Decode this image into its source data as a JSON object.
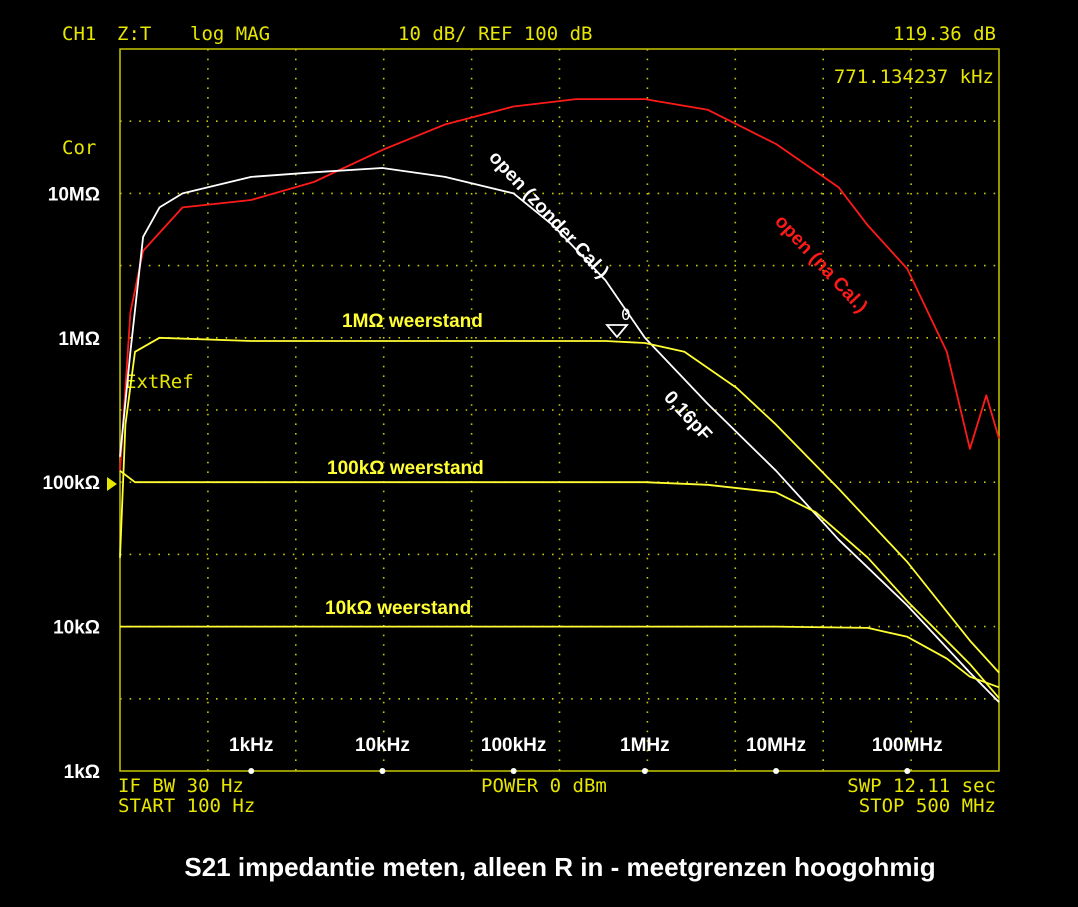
{
  "header": {
    "channel": "CH1",
    "zt": "Z:T",
    "format": "log MAG",
    "scale": "10 dB/ REF 100 dB",
    "marker_value": "119.36 dB",
    "marker_freq": "771.134237 kHz",
    "cor": "Cor",
    "extref": "ExtRef"
  },
  "footer": {
    "if_bw": "IF BW 30 Hz",
    "start": "START  100 Hz",
    "power": "POWER  0 dBm",
    "swp": "SWP  12.11 sec",
    "stop": "STOP  500 MHz"
  },
  "caption": "S21 impedantie meten, alleen R in - meetgrenzen hoogohmig",
  "colors": {
    "background": "#000000",
    "grid": "#c8c800",
    "instrument_text": "#e6e600",
    "trace_yellow": "#ffff33",
    "trace_red": "#ff1a1a",
    "trace_white": "#ffffff"
  },
  "chart_data": {
    "type": "line",
    "x_scale": "log",
    "y_scale": "log",
    "xlim": [
      100,
      500000000
    ],
    "ylim": [
      1000,
      100000000
    ],
    "ytick_labels": [
      {
        "value": 10000000,
        "label": "10MΩ"
      },
      {
        "value": 1000000,
        "label": "1MΩ"
      },
      {
        "value": 100000,
        "label": "100kΩ"
      },
      {
        "value": 10000,
        "label": "10kΩ"
      },
      {
        "value": 1000,
        "label": "1kΩ"
      }
    ],
    "xtick_labels": [
      {
        "value": 1000,
        "label": "1kHz"
      },
      {
        "value": 10000,
        "label": "10kHz"
      },
      {
        "value": 100000,
        "label": "100kHz"
      },
      {
        "value": 1000000,
        "label": "1MHz"
      },
      {
        "value": 10000000,
        "label": "10MHz"
      },
      {
        "value": 100000000,
        "label": "100MHz"
      }
    ],
    "grid": true,
    "series": [
      {
        "name": "1MΩ weerstand",
        "color": "#ffff33",
        "points": [
          [
            100,
            30000
          ],
          [
            110,
            250000
          ],
          [
            130,
            800000
          ],
          [
            200,
            1000000
          ],
          [
            1000,
            950000
          ],
          [
            10000,
            950000
          ],
          [
            100000,
            950000
          ],
          [
            500000,
            950000
          ],
          [
            1000000,
            920000
          ],
          [
            2000000,
            800000
          ],
          [
            5000000,
            450000
          ],
          [
            10000000,
            250000
          ],
          [
            30000000,
            90000
          ],
          [
            100000000,
            28000
          ],
          [
            300000000,
            8000
          ],
          [
            500000000,
            4800
          ]
        ]
      },
      {
        "name": "100kΩ weerstand",
        "color": "#ffff33",
        "points": [
          [
            100,
            120000
          ],
          [
            130,
            100000
          ],
          [
            1000,
            100000
          ],
          [
            100000,
            100000
          ],
          [
            1000000,
            100000
          ],
          [
            3000000,
            96000
          ],
          [
            10000000,
            85000
          ],
          [
            20000000,
            62000
          ],
          [
            50000000,
            30000
          ],
          [
            100000000,
            15000
          ],
          [
            300000000,
            5500
          ],
          [
            500000000,
            3200
          ]
        ]
      },
      {
        "name": "10kΩ weerstand",
        "color": "#ffff33",
        "points": [
          [
            100,
            10000
          ],
          [
            1000,
            10000
          ],
          [
            10000,
            10000
          ],
          [
            1000000,
            10000
          ],
          [
            10000000,
            10000
          ],
          [
            50000000,
            9800
          ],
          [
            100000000,
            8500
          ],
          [
            200000000,
            6000
          ],
          [
            300000000,
            4500
          ],
          [
            500000000,
            3800
          ]
        ]
      },
      {
        "name": "open (zonder Cal.)",
        "color": "#ffffff",
        "points": [
          [
            100,
            150000
          ],
          [
            120,
            800000
          ],
          [
            150,
            5000000
          ],
          [
            200,
            8000000
          ],
          [
            300,
            10000000
          ],
          [
            1000,
            13000000
          ],
          [
            3000,
            14000000
          ],
          [
            10000,
            15000000
          ],
          [
            30000,
            13000000
          ],
          [
            100000,
            10000000
          ],
          [
            200000,
            6000000
          ],
          [
            500000,
            2500000
          ],
          [
            1000000,
            1000000
          ],
          [
            3000000,
            350000
          ],
          [
            10000000,
            120000
          ],
          [
            30000000,
            40000
          ],
          [
            100000000,
            14000
          ],
          [
            300000000,
            4800
          ],
          [
            500000000,
            3000
          ]
        ]
      },
      {
        "name": "open (na Cal.)",
        "color": "#ff1a1a",
        "points": [
          [
            100,
            120000
          ],
          [
            120,
            1500000
          ],
          [
            150,
            4000000
          ],
          [
            300,
            8000000
          ],
          [
            1000,
            9000000
          ],
          [
            3000,
            12000000
          ],
          [
            10000,
            20000000
          ],
          [
            30000,
            30000000
          ],
          [
            100000,
            40000000
          ],
          [
            300000,
            45000000
          ],
          [
            1000000,
            45000000
          ],
          [
            3000000,
            38000000
          ],
          [
            10000000,
            22000000
          ],
          [
            30000000,
            11000000
          ],
          [
            50000000,
            6000000
          ],
          [
            100000000,
            3000000
          ],
          [
            200000000,
            800000
          ],
          [
            300000000,
            170000
          ],
          [
            400000000,
            400000
          ],
          [
            500000000,
            200000
          ]
        ]
      }
    ],
    "annotations": [
      {
        "text": "1MΩ weerstand",
        "color": "#ffff33"
      },
      {
        "text": "100kΩ weerstand",
        "color": "#ffff33"
      },
      {
        "text": "10kΩ weerstand",
        "color": "#ffff33"
      },
      {
        "text": "open (zonder Cal.)",
        "color": "#ffffff"
      },
      {
        "text": "open (na Cal.)",
        "color": "#ff1a1a"
      },
      {
        "text": "0,16pF",
        "color": "#ffffff"
      }
    ]
  }
}
